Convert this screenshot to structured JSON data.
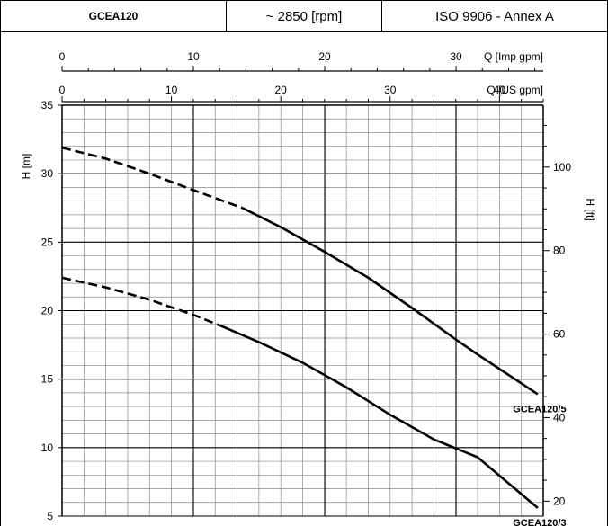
{
  "header": {
    "model": "GCEA120",
    "speed": "~ 2850 [rpm]",
    "standard": "ISO 9906 - Annex A"
  },
  "chart_data": {
    "type": "line",
    "x_axis_top": {
      "label": "Q [Imp gpm]",
      "ticks": [
        0,
        10,
        20,
        30
      ]
    },
    "x_axis_bottom": {
      "label": "Q [US gpm]",
      "ticks": [
        0,
        10,
        20,
        30,
        40
      ],
      "range": [
        0,
        44
      ]
    },
    "y_axis_left": {
      "label": "H [m]",
      "ticks": [
        5,
        10,
        15,
        20,
        25,
        30,
        35
      ],
      "range": [
        5,
        35
      ]
    },
    "y_axis_right": {
      "label": "H [ft]",
      "ticks": [
        20,
        40,
        60,
        80,
        100
      ]
    },
    "grid": true,
    "series": [
      {
        "name": "GCEA120/5",
        "dashed_until_x": 16.5,
        "points": [
          [
            0,
            31.9
          ],
          [
            4,
            31.1
          ],
          [
            8,
            30.0
          ],
          [
            12,
            28.8
          ],
          [
            16.5,
            27.5
          ],
          [
            20,
            26.1
          ],
          [
            24,
            24.3
          ],
          [
            28,
            22.4
          ],
          [
            32,
            20.2
          ],
          [
            36,
            17.9
          ],
          [
            38,
            16.8
          ],
          [
            43.5,
            13.9
          ]
        ]
      },
      {
        "name": "GCEA120/3",
        "dashed_until_x": 14.5,
        "points": [
          [
            0,
            22.4
          ],
          [
            4,
            21.7
          ],
          [
            8,
            20.8
          ],
          [
            12,
            19.7
          ],
          [
            14.5,
            18.9
          ],
          [
            18,
            17.7
          ],
          [
            22,
            16.2
          ],
          [
            26,
            14.4
          ],
          [
            30,
            12.4
          ],
          [
            34,
            10.6
          ],
          [
            38,
            9.3
          ],
          [
            43.5,
            5.6
          ]
        ]
      }
    ]
  }
}
